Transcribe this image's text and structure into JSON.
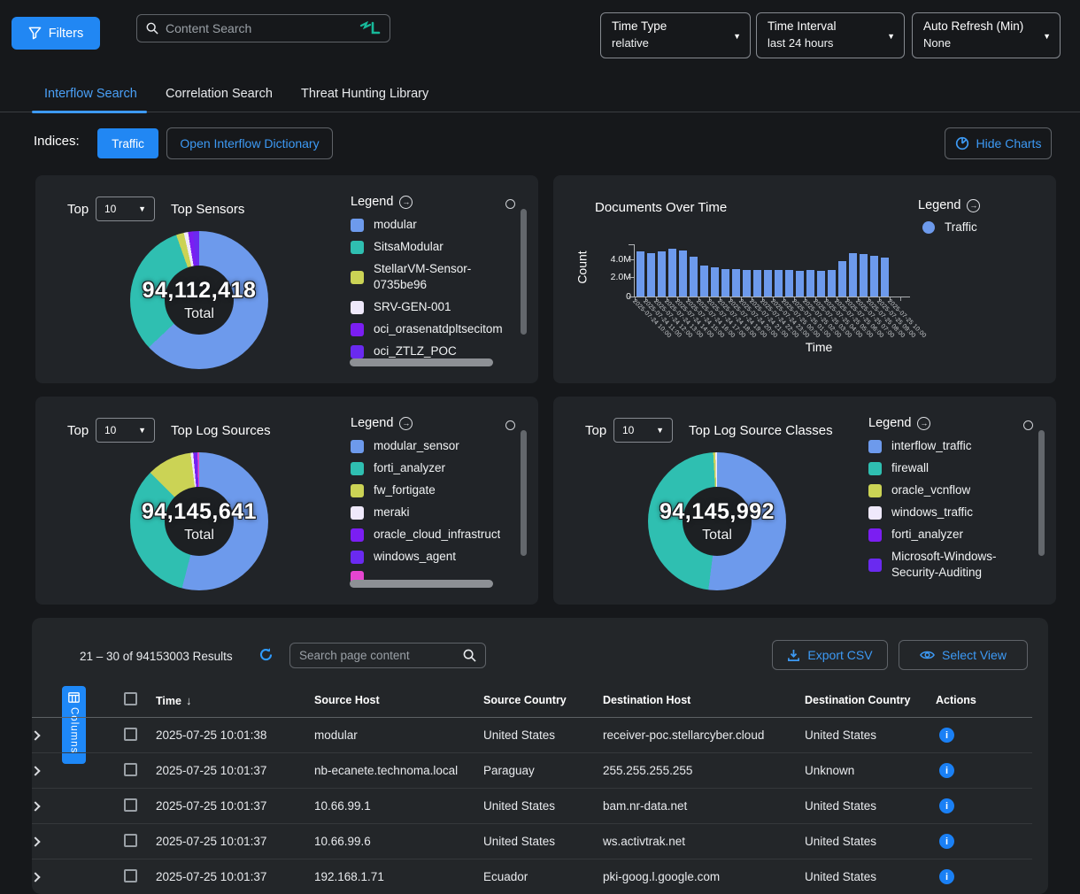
{
  "theme": {
    "accent_blue": "#2187f3",
    "link_blue": "#3d9af5",
    "bar_blue": "#6d9aec"
  },
  "topbar": {
    "filters_label": "Filters",
    "content_search_placeholder": "Content Search",
    "dropdowns": [
      {
        "label": "Time Type",
        "value": "relative"
      },
      {
        "label": "Time Interval",
        "value": "last 24 hours"
      },
      {
        "label": "Auto Refresh (Min)",
        "value": "None"
      }
    ]
  },
  "tabs": [
    {
      "label": "Interflow Search",
      "active": true
    },
    {
      "label": "Correlation Search",
      "active": false
    },
    {
      "label": "Threat Hunting Library",
      "active": false
    }
  ],
  "indices": {
    "label": "Indices:",
    "traffic_button": "Traffic",
    "dictionary_button": "Open Interflow Dictionary",
    "hide_charts_button": "Hide Charts"
  },
  "chart_data": {
    "top_sensors": {
      "type": "pie",
      "top_label": "Top",
      "top_value": "10",
      "title": "Top Sensors",
      "total": "94,112,418",
      "total_label": "Total",
      "legend_title": "Legend",
      "slices": [
        {
          "label": "modular",
          "color": "#6d9aec",
          "pct": 63.0
        },
        {
          "label": "SitsaModular",
          "color": "#2fbfb1",
          "pct": 31.6
        },
        {
          "label": "StellarVM-Sensor-0735be96",
          "color": "#cbd355",
          "pct": 1.8
        },
        {
          "label": "SRV-GEN-001",
          "color": "#efe9fb",
          "pct": 1.0
        },
        {
          "label": "oci_orasenatdpltsecitom",
          "color": "#7b1ef2",
          "pct": 1.2
        },
        {
          "label": "oci_ZTLZ_POC",
          "color": "#6a2af0",
          "pct": 1.4
        }
      ]
    },
    "documents_over_time": {
      "type": "bar",
      "title": "Documents Over Time",
      "xlabel": "Time",
      "ylabel": "Count",
      "yticks": [
        "4.0M",
        "2.0M",
        "0"
      ],
      "ymax_millions": 5.6,
      "legend_title": "Legend",
      "legend": [
        {
          "label": "Traffic",
          "color": "#6d9aec"
        }
      ],
      "x": [
        "2025-07-24 10:00",
        "2025-07-24 11:00",
        "2025-07-24 12:00",
        "2025-07-24 13:00",
        "2025-07-24 14:00",
        "2025-07-24 15:00",
        "2025-07-24 16:00",
        "2025-07-24 17:00",
        "2025-07-24 18:00",
        "2025-07-24 19:00",
        "2025-07-24 20:00",
        "2025-07-24 21:00",
        "2025-07-24 22:00",
        "2025-07-24 23:00",
        "2025-07-25 00:00",
        "2025-07-25 01:00",
        "2025-07-25 02:00",
        "2025-07-25 03:00",
        "2025-07-25 04:00",
        "2025-07-25 05:00",
        "2025-07-25 06:00",
        "2025-07-25 07:00",
        "2025-07-25 08:00",
        "2025-07-25 09:00",
        "2025-07-25 10:00"
      ],
      "values_millions": [
        5.2,
        5.0,
        5.25,
        5.5,
        5.3,
        4.6,
        3.6,
        3.4,
        3.25,
        3.2,
        3.15,
        3.1,
        3.15,
        3.15,
        3.1,
        3.05,
        3.1,
        3.0,
        3.1,
        4.1,
        5.05,
        4.9,
        4.7,
        4.5,
        0.05
      ]
    },
    "top_log_sources": {
      "type": "pie",
      "top_label": "Top",
      "top_value": "10",
      "title": "Top Log Sources",
      "total": "94,145,641",
      "total_label": "Total",
      "legend_title": "Legend",
      "slices": [
        {
          "label": "modular_sensor",
          "color": "#6d9aec",
          "pct": 54.0
        },
        {
          "label": "forti_analyzer",
          "color": "#2fbfb1",
          "pct": 33.5
        },
        {
          "label": "fw_fortigate",
          "color": "#cbd355",
          "pct": 10.5
        },
        {
          "label": "meraki",
          "color": "#efe9fb",
          "pct": 0.6
        },
        {
          "label": "oracle_cloud_infrastruct",
          "color": "#7b1ef2",
          "pct": 0.5
        },
        {
          "label": "windows_agent",
          "color": "#6a2af0",
          "pct": 0.5
        },
        {
          "label": "",
          "color": "#e645d0",
          "pct": 0.4
        }
      ]
    },
    "top_log_source_classes": {
      "type": "pie",
      "top_label": "Top",
      "top_value": "10",
      "title": "Top Log Source Classes",
      "total": "94,145,992",
      "total_label": "Total",
      "legend_title": "Legend",
      "slices": [
        {
          "label": "interflow_traffic",
          "color": "#6d9aec",
          "pct": 52.0
        },
        {
          "label": "firewall",
          "color": "#2fbfb1",
          "pct": 47.1
        },
        {
          "label": "oracle_vcnflow",
          "color": "#cbd355",
          "pct": 0.5
        },
        {
          "label": "windows_traffic",
          "color": "#efe9fb",
          "pct": 0.4
        },
        {
          "label": "forti_analyzer",
          "color": "#7b1ef2",
          "pct": 0.0
        },
        {
          "label": "Microsoft-Windows-Security-Auditing",
          "color": "#6a2af0",
          "pct": 0.0
        }
      ]
    }
  },
  "results": {
    "summary": "21 – 30 of 94153003 Results",
    "search_placeholder": "Search page content",
    "export_button": "Export CSV",
    "select_view_button": "Select View",
    "columns_button": "Columns",
    "headers": [
      "Time",
      "Source Host",
      "Source Country",
      "Destination Host",
      "Destination Country",
      "Actions"
    ],
    "rows": [
      {
        "time": "2025-07-25 10:01:38",
        "source_host": "modular",
        "source_country": "United States",
        "dest_host": "receiver-poc.stellarcyber.cloud",
        "dest_country": "United States"
      },
      {
        "time": "2025-07-25 10:01:37",
        "source_host": "nb-ecanete.technoma.local",
        "source_country": "Paraguay",
        "dest_host": "255.255.255.255",
        "dest_country": "Unknown"
      },
      {
        "time": "2025-07-25 10:01:37",
        "source_host": "10.66.99.1",
        "source_country": "United States",
        "dest_host": "bam.nr-data.net",
        "dest_country": "United States"
      },
      {
        "time": "2025-07-25 10:01:37",
        "source_host": "10.66.99.6",
        "source_country": "United States",
        "dest_host": "ws.activtrak.net",
        "dest_country": "United States"
      },
      {
        "time": "2025-07-25 10:01:37",
        "source_host": "192.168.1.71",
        "source_country": "Ecuador",
        "dest_host": "pki-goog.l.google.com",
        "dest_country": "United States"
      }
    ]
  }
}
